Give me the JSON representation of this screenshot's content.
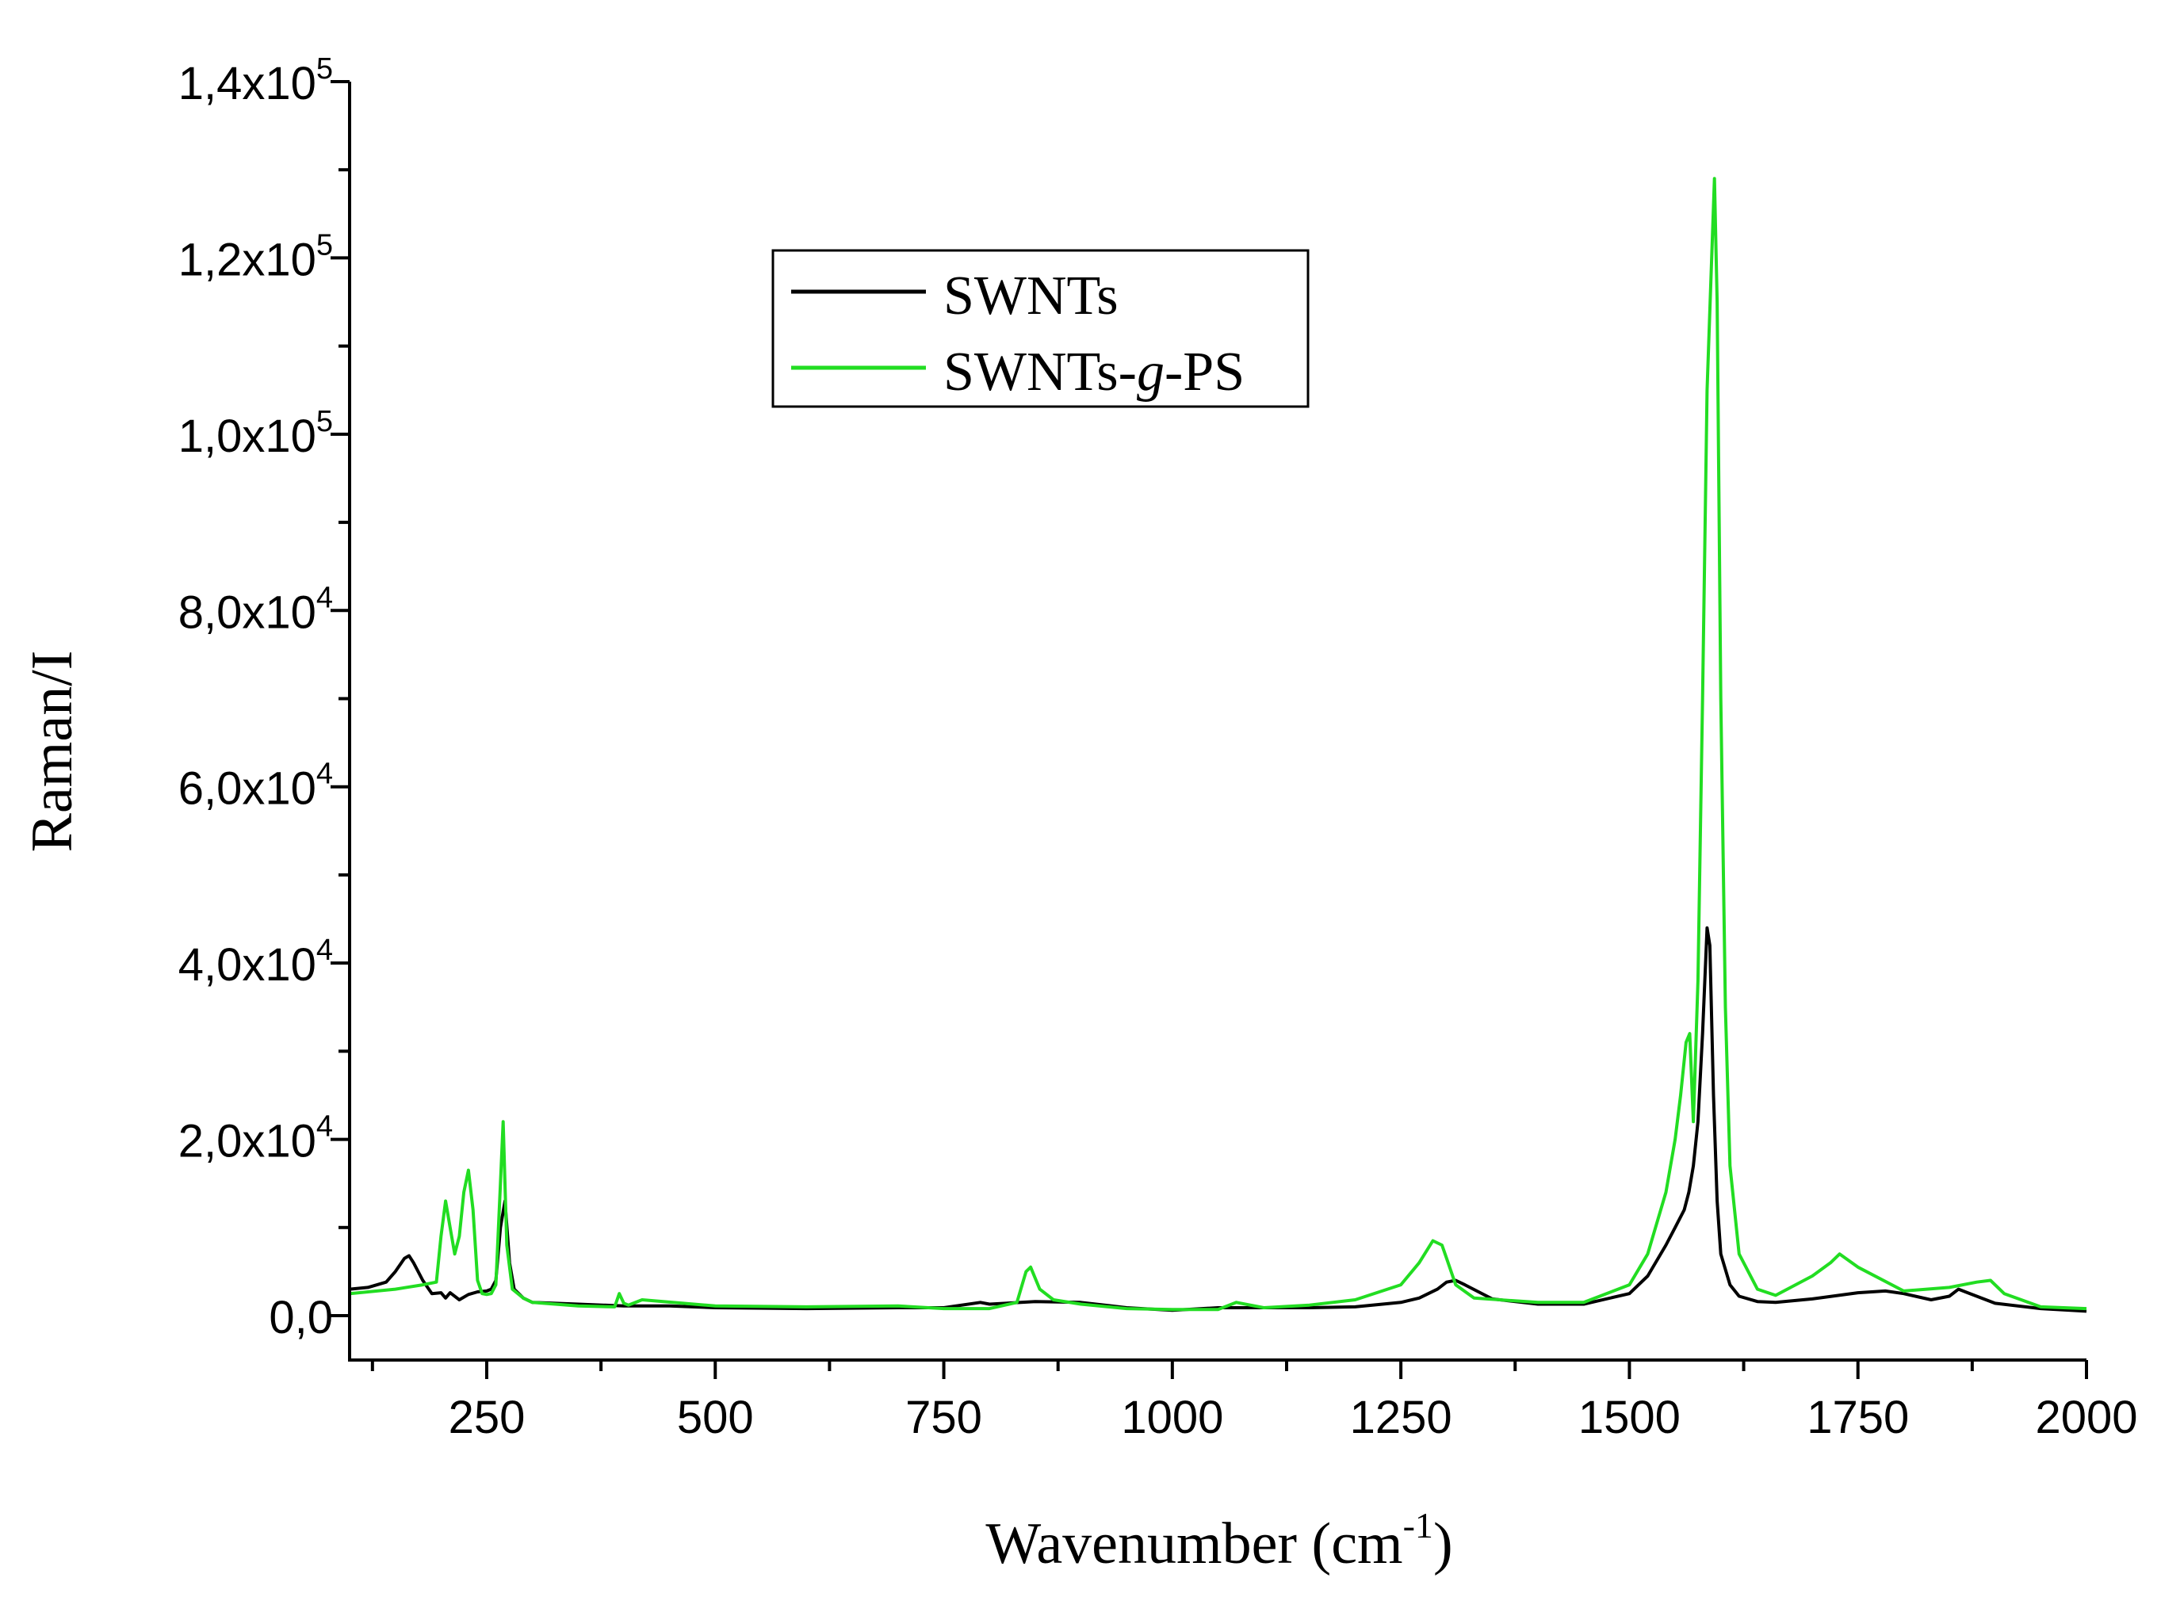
{
  "chart_data": {
    "type": "line",
    "title": "",
    "xlabel": "Wavenumber (cm",
    "xlabel_sup": "-1",
    "xlabel_close": ")",
    "ylabel": "Raman/I",
    "xlim": [
      100,
      2000
    ],
    "ylim": [
      -5000,
      140000
    ],
    "x_ticks": [
      250,
      500,
      750,
      1000,
      1250,
      1500,
      1750,
      2000
    ],
    "x_tick_labels": [
      "250",
      "500",
      "750",
      "1000",
      "1250",
      "1500",
      "1750",
      "2000"
    ],
    "y_ticks": [
      {
        "value": 0,
        "mantissa": "0,0",
        "exp": ""
      },
      {
        "value": 20000,
        "mantissa": "2,0x10",
        "exp": "4"
      },
      {
        "value": 40000,
        "mantissa": "4,0x10",
        "exp": "4"
      },
      {
        "value": 60000,
        "mantissa": "6,0x10",
        "exp": "4"
      },
      {
        "value": 80000,
        "mantissa": "8,0x10",
        "exp": "4"
      },
      {
        "value": 100000,
        "mantissa": "1,0x10",
        "exp": "5"
      },
      {
        "value": 120000,
        "mantissa": "1,2x10",
        "exp": "5"
      },
      {
        "value": 140000,
        "mantissa": "1,4x10",
        "exp": "5"
      }
    ],
    "legend": {
      "placement": "top-center",
      "entries": [
        {
          "label": "SWNTs",
          "label_suffix": "",
          "label_italic": "",
          "label_tail": ""
        },
        {
          "label": "SWNTs-",
          "label_italic": "g",
          "label_tail": "-PS"
        }
      ]
    },
    "series": [
      {
        "name": "SWNTs",
        "color": "#000000",
        "x": [
          100,
          120,
          140,
          150,
          160,
          165,
          170,
          180,
          190,
          200,
          205,
          210,
          220,
          230,
          240,
          250,
          255,
          260,
          265,
          270,
          275,
          280,
          290,
          300,
          350,
          400,
          450,
          500,
          600,
          700,
          750,
          790,
          800,
          850,
          900,
          950,
          1000,
          1050,
          1100,
          1150,
          1200,
          1250,
          1270,
          1290,
          1300,
          1310,
          1320,
          1350,
          1400,
          1450,
          1500,
          1520,
          1540,
          1550,
          1560,
          1565,
          1570,
          1575,
          1580,
          1585,
          1588,
          1592,
          1596,
          1600,
          1610,
          1620,
          1640,
          1660,
          1700,
          1750,
          1780,
          1800,
          1830,
          1850,
          1860,
          1870,
          1900,
          1950,
          2000
        ],
        "y": [
          3000,
          3200,
          3800,
          5000,
          6500,
          6800,
          6000,
          4000,
          2500,
          2600,
          2000,
          2600,
          1800,
          2400,
          2700,
          2800,
          3000,
          4000,
          10000,
          13000,
          6000,
          3000,
          2000,
          1500,
          1300,
          1100,
          1100,
          900,
          800,
          900,
          900,
          1500,
          1300,
          1600,
          1500,
          900,
          600,
          900,
          900,
          900,
          1000,
          1500,
          2000,
          3000,
          3800,
          4000,
          3500,
          1900,
          1300,
          1300,
          2500,
          4500,
          8000,
          10000,
          12000,
          14000,
          17000,
          22000,
          32000,
          44000,
          42000,
          25000,
          13000,
          7000,
          3500,
          2200,
          1600,
          1500,
          1900,
          2600,
          2800,
          2500,
          1800,
          2200,
          3000,
          2600,
          1400,
          800,
          500
        ]
      },
      {
        "name": "SWNTs-g-PS",
        "color": "#22dd22",
        "x": [
          100,
          150,
          180,
          195,
          200,
          205,
          210,
          215,
          220,
          225,
          230,
          235,
          240,
          245,
          250,
          255,
          260,
          265,
          268,
          272,
          278,
          290,
          300,
          350,
          390,
          395,
          400,
          405,
          420,
          500,
          600,
          700,
          750,
          800,
          830,
          840,
          845,
          855,
          870,
          900,
          950,
          1000,
          1050,
          1070,
          1100,
          1150,
          1200,
          1250,
          1270,
          1285,
          1295,
          1300,
          1310,
          1330,
          1400,
          1450,
          1500,
          1520,
          1540,
          1550,
          1556,
          1562,
          1566,
          1570,
          1575,
          1580,
          1585,
          1590,
          1593,
          1596,
          1600,
          1605,
          1610,
          1620,
          1640,
          1660,
          1700,
          1720,
          1730,
          1750,
          1800,
          1850,
          1880,
          1895,
          1910,
          1950,
          2000
        ],
        "y": [
          2500,
          3000,
          3500,
          3800,
          9000,
          13000,
          10000,
          7000,
          9000,
          14000,
          16500,
          12000,
          4000,
          2500,
          2400,
          2500,
          3500,
          15000,
          22000,
          8000,
          3000,
          2000,
          1500,
          1100,
          1000,
          2500,
          1400,
          1200,
          1800,
          1100,
          1000,
          1100,
          800,
          800,
          1500,
          5000,
          5500,
          3000,
          1800,
          1300,
          800,
          700,
          700,
          1500,
          900,
          1200,
          1800,
          3500,
          6000,
          8500,
          8000,
          6500,
          3500,
          2000,
          1500,
          1500,
          3500,
          7000,
          14000,
          20000,
          25000,
          31000,
          32000,
          22000,
          38000,
          70000,
          105000,
          120000,
          129000,
          115000,
          70000,
          35000,
          17000,
          7000,
          3000,
          2300,
          4500,
          6000,
          7000,
          5500,
          2800,
          3200,
          3800,
          4000,
          2500,
          1000,
          800
        ]
      }
    ]
  }
}
